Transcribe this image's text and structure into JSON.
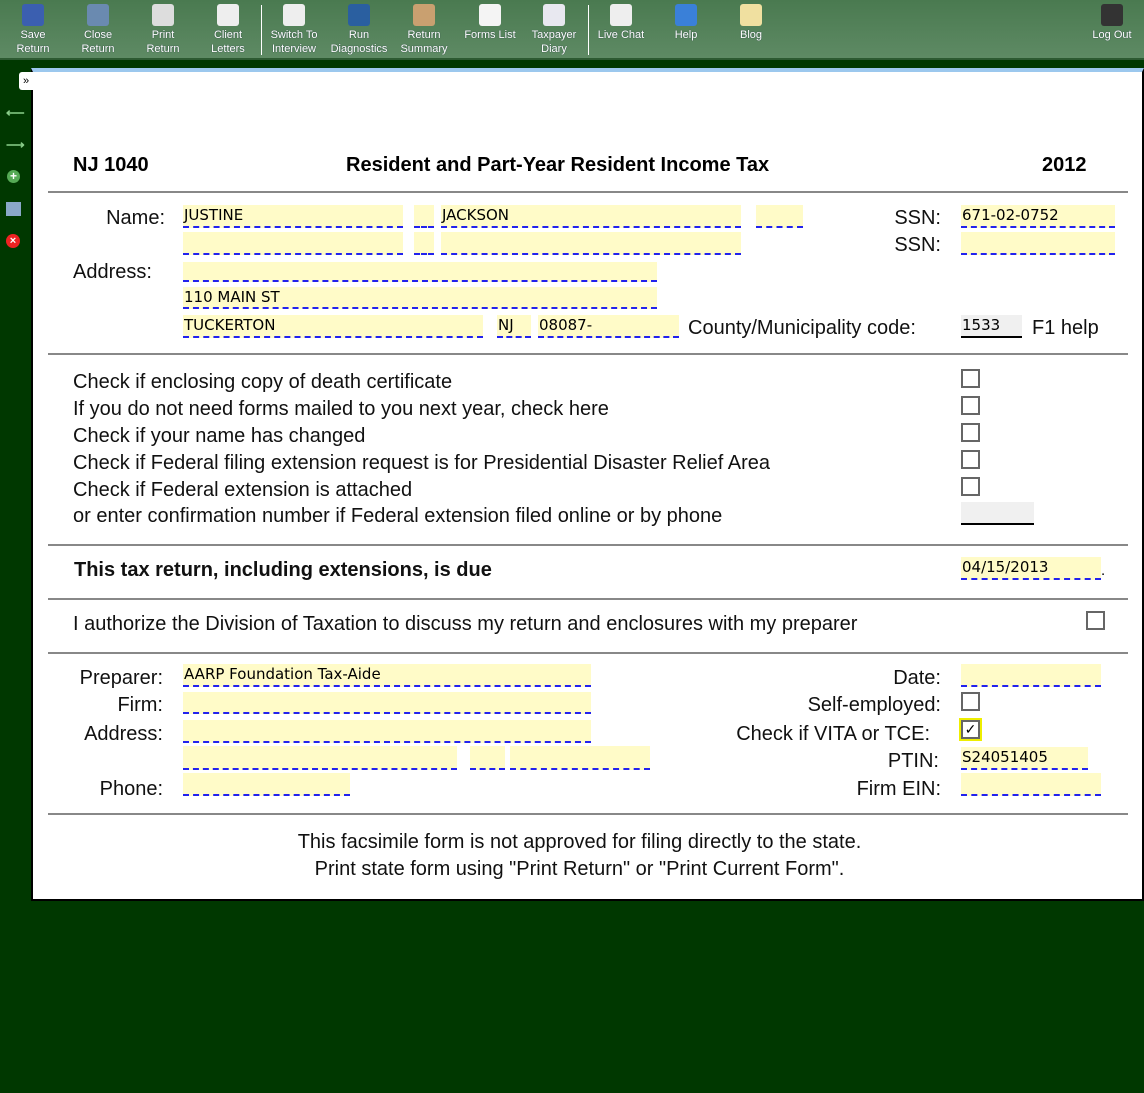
{
  "toolbar": {
    "items": [
      {
        "label1": "Save",
        "label2": "Return",
        "icon": "save-icon",
        "color": "#3b5fb0"
      },
      {
        "label1": "Close",
        "label2": "Return",
        "icon": "close-return-icon",
        "color": "#6a8ab0"
      },
      {
        "label1": "Print",
        "label2": "Return",
        "icon": "print-icon",
        "color": "#ddd"
      },
      {
        "label1": "Client",
        "label2": "Letters",
        "icon": "envelope-icon",
        "color": "#eee"
      },
      {
        "label1": "Switch To",
        "label2": "Interview",
        "icon": "interview-icon",
        "color": "#eee"
      },
      {
        "label1": "Run",
        "label2": "Diagnostics",
        "icon": "diagnostics-icon",
        "color": "#2a5fa0"
      },
      {
        "label1": "Return",
        "label2": "Summary",
        "icon": "clipboard-icon",
        "color": "#c9a070"
      },
      {
        "label1": "Forms List",
        "label2": "",
        "icon": "list-icon",
        "color": "#f4f4f4"
      },
      {
        "label1": "Taxpayer",
        "label2": "Diary",
        "icon": "diary-icon",
        "color": "#e8e8f0"
      },
      {
        "label1": "Live Chat",
        "label2": "",
        "icon": "chat-icon",
        "color": "#eee"
      },
      {
        "label1": "Help",
        "label2": "",
        "icon": "help-icon",
        "color": "#3a80d8"
      },
      {
        "label1": "Blog",
        "label2": "",
        "icon": "blog-icon",
        "color": "#f0e0a0"
      },
      {
        "label1": "Log Out",
        "label2": "",
        "icon": "logout-icon",
        "color": "#333"
      }
    ]
  },
  "side": {
    "expand": "»"
  },
  "form": {
    "code": "NJ 1040",
    "title": "Resident and Part-Year Resident Income Tax",
    "year": "2012",
    "labels": {
      "name": "Name:",
      "ssn": "SSN:",
      "address": "Address:",
      "county": "County/Municipality code:",
      "f1help": "F1 help"
    },
    "taxpayer": {
      "first": "JUSTINE",
      "mi": "",
      "last": "JACKSON",
      "suffix": "",
      "ssn": "671-02-0752"
    },
    "spouse": {
      "first": "",
      "mi": "",
      "last": "",
      "ssn": ""
    },
    "address": {
      "line1": "",
      "line2": "110 MAIN ST",
      "city": "TUCKERTON",
      "state": "NJ",
      "zip": "08087-",
      "county_code": "1533"
    },
    "checks": [
      {
        "label": "Check if enclosing copy of death certificate",
        "checked": false
      },
      {
        "label": "If you do not need forms mailed to you next year,  check here",
        "checked": false
      },
      {
        "label": "Check if your name has changed",
        "checked": false
      },
      {
        "label": "Check if Federal filing extension request is for Presidential Disaster Relief Area",
        "checked": false
      },
      {
        "label": "Check if Federal extension is attached",
        "checked": false
      }
    ],
    "confirmation_label": "or enter confirmation number if Federal extension filed online or by phone",
    "confirmation": "",
    "due_label": "This tax return,  including extensions,  is due",
    "due_date": "04/15/2013",
    "due_suffix": ".",
    "authorize_label": "I authorize the Division of Taxation to discuss my return and enclosures with my preparer",
    "preparer": {
      "labels": {
        "preparer": "Preparer:",
        "firm": "Firm:",
        "address": "Address:",
        "phone": "Phone:",
        "date": "Date:",
        "self": "Self-employed:",
        "vita": "Check if VITA or TCE:",
        "ptin": "PTIN:",
        "ein": "Firm EIN:"
      },
      "name": "AARP Foundation Tax-Aide",
      "firm": "",
      "address": "",
      "city": "",
      "state": "",
      "zip": "",
      "phone": "",
      "date": "",
      "self_employed": false,
      "vita": true,
      "ptin": "S24051405",
      "ein": ""
    },
    "footer1": "This facsimile form is not approved for filing directly to the state.",
    "footer2": "Print state form using \"Print Return\" or \"Print Current Form\"."
  }
}
